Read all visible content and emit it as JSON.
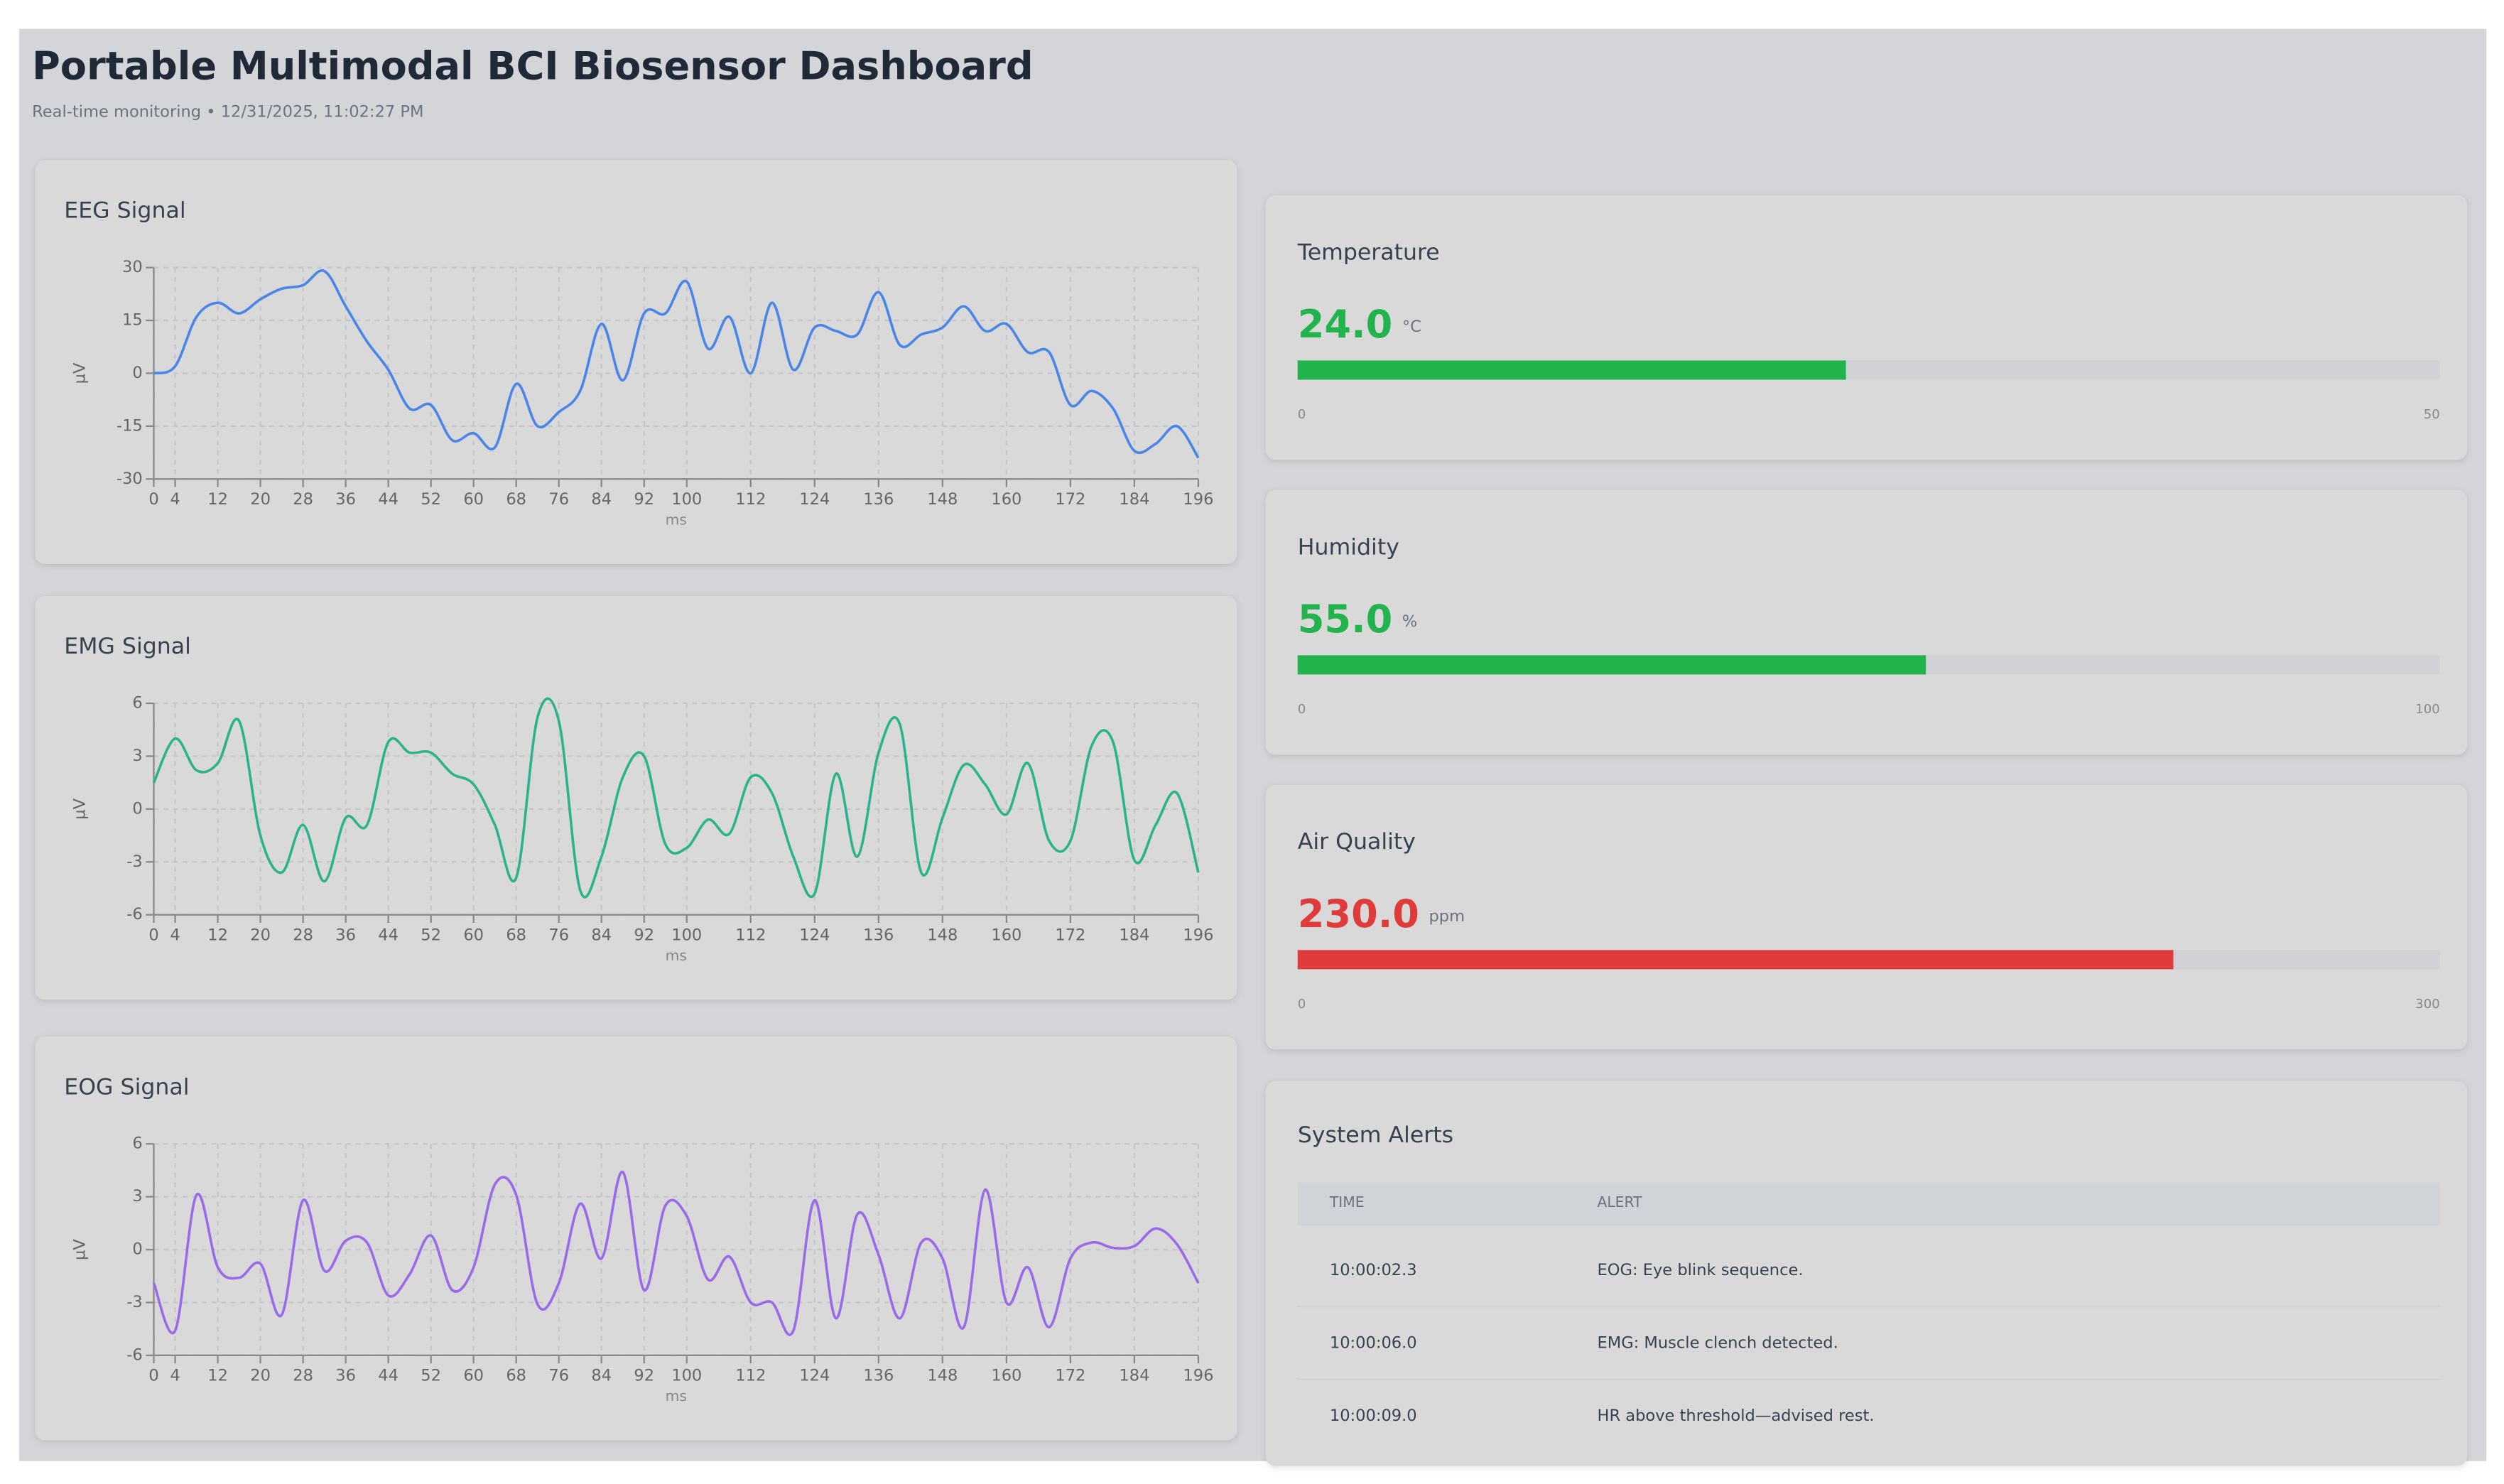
{
  "header": {
    "title": "Portable Multimodal BCI Biosensor Dashboard",
    "subtitle": "Real-time monitoring • 12/31/2025, 11:02:27 PM"
  },
  "chart_data": [
    {
      "type": "line",
      "title": "EEG Signal",
      "ylabel": "µV",
      "xlabel": "ms",
      "color": "#4a86e8",
      "x": [
        0,
        4,
        8,
        12,
        16,
        20,
        24,
        28,
        32,
        36,
        40,
        44,
        48,
        52,
        56,
        60,
        64,
        68,
        72,
        76,
        80,
        84,
        88,
        92,
        96,
        100,
        104,
        108,
        112,
        116,
        120,
        124,
        128,
        132,
        136,
        140,
        144,
        148,
        152,
        156,
        160,
        164,
        168,
        172,
        176,
        180,
        184,
        188,
        192,
        196
      ],
      "values": [
        0,
        2,
        16,
        20,
        17,
        21,
        24,
        25,
        29,
        19,
        9,
        1,
        -10,
        -9,
        -19,
        -17,
        -21,
        -3,
        -15,
        -11,
        -5,
        14,
        -2,
        17,
        17,
        26,
        7,
        16,
        0,
        20,
        1,
        13,
        12,
        11,
        23,
        8,
        11,
        13,
        19,
        12,
        14,
        6,
        6,
        -9,
        -5,
        -10,
        -22,
        -20,
        -15,
        -24
      ],
      "xlim": [
        0,
        196
      ],
      "xticks": [
        0,
        4,
        12,
        20,
        28,
        36,
        44,
        52,
        60,
        68,
        76,
        84,
        92,
        100,
        112,
        124,
        136,
        148,
        160,
        172,
        184,
        196
      ],
      "ylim": [
        -30,
        30
      ],
      "yticks": [
        30,
        15,
        0,
        -15,
        -30
      ],
      "grid": true
    },
    {
      "type": "line",
      "title": "EMG Signal",
      "ylabel": "µV",
      "xlabel": "ms",
      "color": "#2bb38a",
      "x": [
        0,
        4,
        8,
        12,
        16,
        20,
        24,
        28,
        32,
        36,
        40,
        44,
        48,
        52,
        56,
        60,
        64,
        68,
        72,
        76,
        80,
        84,
        88,
        92,
        96,
        100,
        104,
        108,
        112,
        116,
        120,
        124,
        128,
        132,
        136,
        140,
        144,
        148,
        152,
        156,
        160,
        164,
        168,
        172,
        176,
        180,
        184,
        188,
        192,
        196
      ],
      "values": [
        1.5,
        4,
        2.2,
        2.6,
        5,
        -1.5,
        -3.6,
        -0.9,
        -4.1,
        -0.5,
        -0.9,
        3.8,
        3.2,
        3.2,
        2,
        1.4,
        -0.9,
        -3.9,
        5.2,
        5,
        -4.6,
        -2.7,
        1.8,
        3,
        -2,
        -2.2,
        -0.6,
        -1.4,
        1.8,
        0.9,
        -2.7,
        -4.8,
        2,
        -2.7,
        3.2,
        4.8,
        -3.6,
        -0.5,
        2.5,
        1.4,
        -0.3,
        2.6,
        -1.8,
        -1.8,
        3.6,
        3.8,
        -2.9,
        -0.9,
        0.9,
        -3.6
      ],
      "xlim": [
        0,
        196
      ],
      "xticks": [
        0,
        4,
        12,
        20,
        28,
        36,
        44,
        52,
        60,
        68,
        76,
        84,
        92,
        100,
        112,
        124,
        136,
        148,
        160,
        172,
        184,
        196
      ],
      "ylim": [
        -6,
        6
      ],
      "yticks": [
        6,
        3,
        0,
        -3,
        -6
      ],
      "grid": true
    },
    {
      "type": "line",
      "title": "EOG Signal",
      "ylabel": "µV",
      "xlabel": "ms",
      "color": "#9b6ae8",
      "x": [
        0,
        4,
        8,
        12,
        16,
        20,
        24,
        28,
        32,
        36,
        40,
        44,
        48,
        52,
        56,
        60,
        64,
        68,
        72,
        76,
        80,
        84,
        88,
        92,
        96,
        100,
        104,
        108,
        112,
        116,
        120,
        124,
        128,
        132,
        136,
        140,
        144,
        148,
        152,
        156,
        160,
        164,
        168,
        172,
        176,
        180,
        184,
        188,
        192,
        196
      ],
      "values": [
        -1.9,
        -4.6,
        3.1,
        -1,
        -1.6,
        -0.8,
        -3.7,
        2.8,
        -1.2,
        0.5,
        0.4,
        -2.6,
        -1.4,
        0.8,
        -2.3,
        -1,
        3.7,
        3.1,
        -3.1,
        -1.9,
        2.6,
        -0.5,
        4.4,
        -2.3,
        2.5,
        1.9,
        -1.7,
        -0.4,
        -3,
        -3,
        -4.6,
        2.8,
        -3.9,
        2,
        -0.3,
        -3.9,
        0.4,
        -0.5,
        -4.4,
        3.4,
        -3,
        -1,
        -4.4,
        -0.5,
        0.4,
        0.1,
        0.2,
        1.2,
        0.3,
        -1.9
      ],
      "xlim": [
        0,
        196
      ],
      "xticks": [
        0,
        4,
        12,
        20,
        28,
        36,
        44,
        52,
        60,
        68,
        76,
        84,
        92,
        100,
        112,
        124,
        136,
        148,
        160,
        172,
        184,
        196
      ],
      "ylim": [
        -6,
        6
      ],
      "yticks": [
        6,
        3,
        0,
        -3,
        -6
      ],
      "grid": true
    }
  ],
  "sensors": [
    {
      "label": "Temperature",
      "value": 24,
      "value_label": "24.0",
      "unit": "°C",
      "min": 0,
      "max": 50,
      "color": "#22b34c"
    },
    {
      "label": "Humidity",
      "value": 55,
      "value_label": "55.0",
      "unit": "%",
      "min": 0,
      "max": 100,
      "color": "#22b34c"
    },
    {
      "label": "Air Quality",
      "value": 230,
      "value_label": "230.0",
      "unit": "ppm",
      "min": 0,
      "max": 300,
      "color": "#e03b3b"
    }
  ],
  "alerts": {
    "title": "System Alerts",
    "columns": [
      "TIME",
      "ALERT"
    ],
    "rows": [
      [
        "10:00:02.3",
        "EOG: Eye blink sequence."
      ],
      [
        "10:00:06.0",
        "EMG: Muscle clench detected."
      ],
      [
        "10:00:09.0",
        "HR above threshold—advised rest."
      ]
    ]
  }
}
